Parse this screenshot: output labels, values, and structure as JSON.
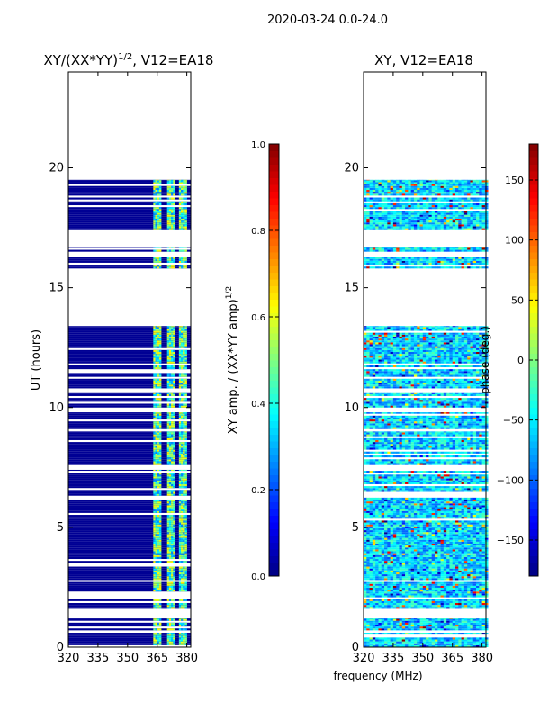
{
  "figure_title": "2020-03-24 0.0-24.0",
  "chart_data": [
    {
      "type": "heatmap",
      "title_main": "XY/(XX*YY)",
      "title_sup": "1/2",
      "title_tail": ", V12=EA18",
      "xlabel": "",
      "ylabel": "UT (hours)",
      "xlim": [
        320,
        382
      ],
      "ylim": [
        0,
        24
      ],
      "x_ticks": [
        320,
        335,
        350,
        365,
        380
      ],
      "y_ticks": [
        0,
        5,
        10,
        15,
        20
      ],
      "colormap": "jet",
      "color_range": [
        0.0,
        1.0
      ],
      "colorbar_label_main": "XY amp. / (XX*YY amp)",
      "colorbar_label_sup": "1/2",
      "colorbar_ticks": [
        0.0,
        0.2,
        0.4,
        0.6,
        0.8,
        1.0
      ],
      "colorbar_tick_labels": [
        "0.0",
        "0.2",
        "0.4",
        "0.6",
        "0.8",
        "1.0"
      ],
      "data_hour_bands": [
        [
          0.0,
          0.6
        ],
        [
          0.7,
          1.2
        ],
        [
          1.6,
          7.4
        ],
        [
          7.6,
          9.0
        ],
        [
          9.1,
          9.8
        ],
        [
          10.0,
          10.6
        ],
        [
          10.8,
          13.4
        ],
        [
          15.8,
          16.3
        ],
        [
          16.5,
          16.7
        ],
        [
          17.4,
          19.5
        ]
      ],
      "bright_channel_bands_mhz": [
        [
          363,
          367
        ],
        [
          370,
          374
        ],
        [
          376,
          380
        ]
      ],
      "background_value": 0.02
    },
    {
      "type": "heatmap",
      "title_main": "XY, V12=EA18",
      "xlabel": "frequency (MHz)",
      "ylabel": "",
      "xlim": [
        320,
        382
      ],
      "ylim": [
        0,
        24
      ],
      "x_ticks": [
        320,
        335,
        350,
        365,
        380
      ],
      "y_ticks": [
        0,
        5,
        10,
        15,
        20
      ],
      "colormap": "jet",
      "color_range": [
        -180,
        180
      ],
      "colorbar_label_main": "phase (deg.)",
      "colorbar_ticks": [
        -150,
        -100,
        -50,
        0,
        50,
        100,
        150
      ],
      "colorbar_tick_labels": [
        "−150",
        "−100",
        "−50",
        "0",
        "50",
        "100",
        "150"
      ],
      "data_hour_bands": [
        [
          0.0,
          0.6
        ],
        [
          0.7,
          1.2
        ],
        [
          1.6,
          7.4
        ],
        [
          7.6,
          9.0
        ],
        [
          9.1,
          9.8
        ],
        [
          10.0,
          10.6
        ],
        [
          10.8,
          13.4
        ],
        [
          15.8,
          16.3
        ],
        [
          16.5,
          16.7
        ],
        [
          17.4,
          19.5
        ]
      ],
      "typical_phase_deg": -60
    }
  ]
}
